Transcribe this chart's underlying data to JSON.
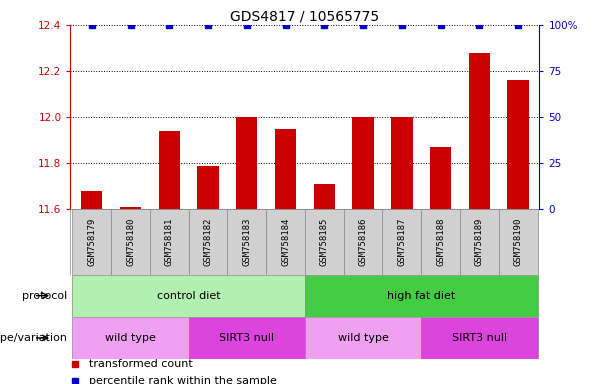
{
  "title": "GDS4817 / 10565775",
  "samples": [
    "GSM758179",
    "GSM758180",
    "GSM758181",
    "GSM758182",
    "GSM758183",
    "GSM758184",
    "GSM758185",
    "GSM758186",
    "GSM758187",
    "GSM758188",
    "GSM758189",
    "GSM758190"
  ],
  "bar_values": [
    11.68,
    11.61,
    11.94,
    11.79,
    12.0,
    11.95,
    11.71,
    12.0,
    12.0,
    11.87,
    12.28,
    12.16
  ],
  "dot_values": [
    100,
    100,
    100,
    100,
    100,
    100,
    100,
    100,
    100,
    100,
    100,
    100
  ],
  "bar_color": "#cc0000",
  "dot_color": "#0000cc",
  "ylim_left": [
    11.6,
    12.4
  ],
  "ylim_right": [
    0,
    100
  ],
  "yticks_left": [
    11.6,
    11.8,
    12.0,
    12.2,
    12.4
  ],
  "yticks_right": [
    0,
    25,
    50,
    75,
    100
  ],
  "ytick_labels_right": [
    "0",
    "25",
    "50",
    "75",
    "100%"
  ],
  "protocol_groups": [
    {
      "label": "control diet",
      "start": 0,
      "end": 5,
      "color": "#b2f0b2"
    },
    {
      "label": "high fat diet",
      "start": 6,
      "end": 11,
      "color": "#44cc44"
    }
  ],
  "genotype_groups": [
    {
      "label": "wild type",
      "start": 0,
      "end": 2,
      "color": "#f0a0f0"
    },
    {
      "label": "SIRT3 null",
      "start": 3,
      "end": 5,
      "color": "#dd44dd"
    },
    {
      "label": "wild type",
      "start": 6,
      "end": 8,
      "color": "#f0a0f0"
    },
    {
      "label": "SIRT3 null",
      "start": 9,
      "end": 11,
      "color": "#dd44dd"
    }
  ],
  "protocol_label": "protocol",
  "genotype_label": "genotype/variation",
  "legend_items": [
    {
      "label": "transformed count",
      "color": "#cc0000"
    },
    {
      "label": "percentile rank within the sample",
      "color": "#0000cc"
    }
  ],
  "background_color": "#ffffff",
  "title_fontsize": 10,
  "tick_fontsize": 7.5,
  "label_fontsize": 8,
  "bar_width": 0.55,
  "sample_box_color": "#d0d0d0",
  "xlim": [
    -0.55,
    11.55
  ]
}
